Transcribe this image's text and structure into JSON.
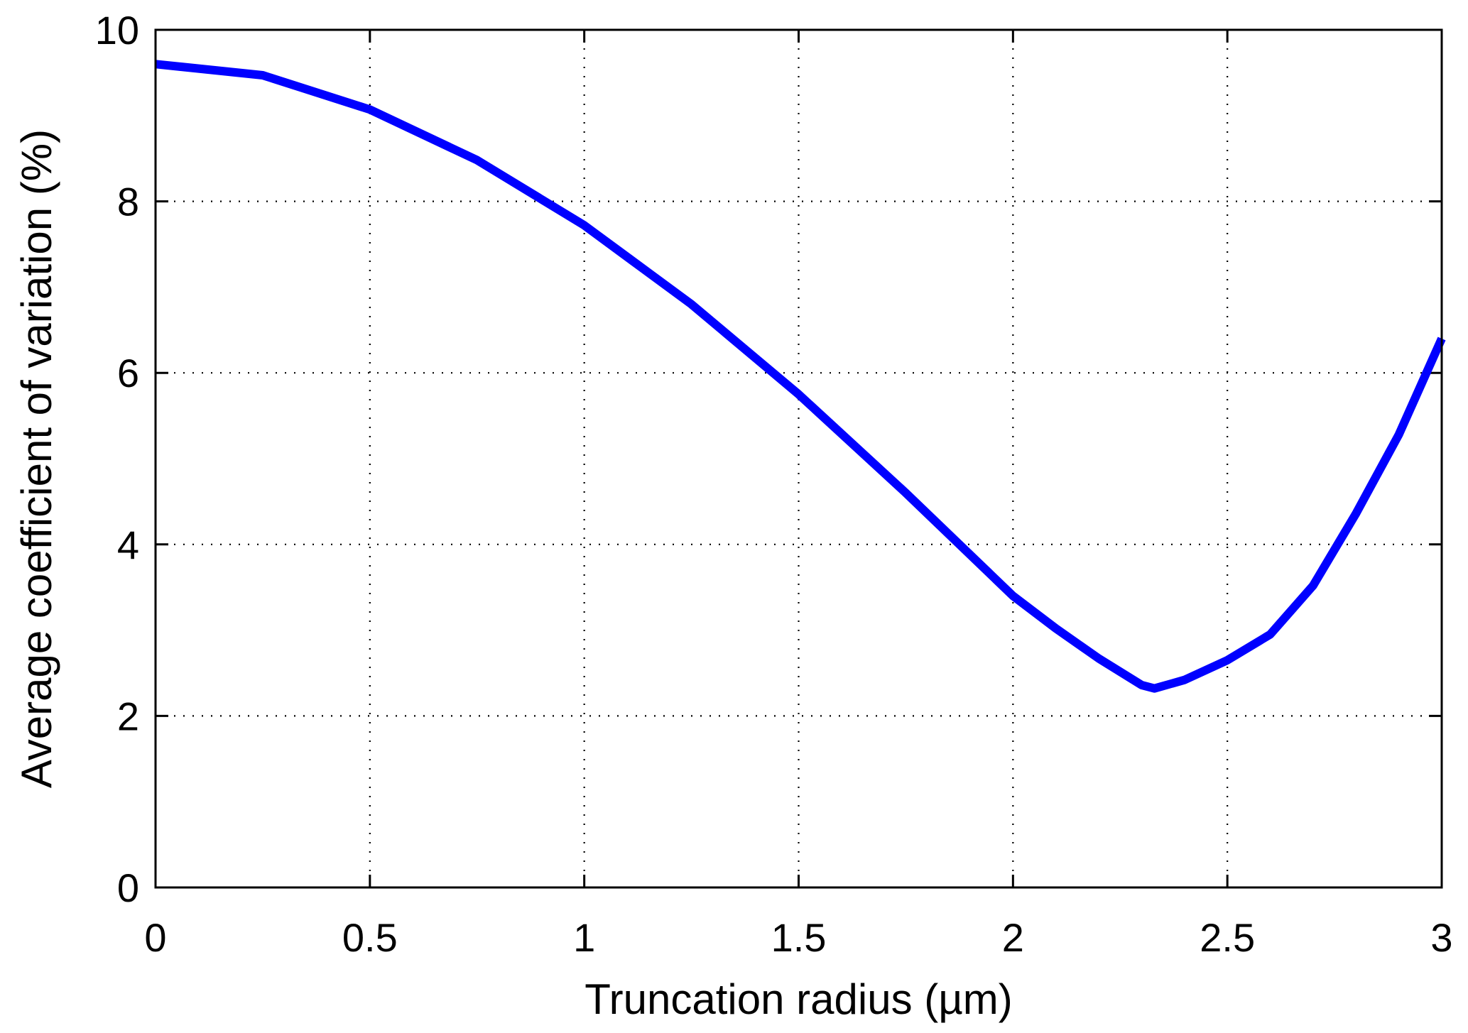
{
  "chart_data": {
    "type": "line",
    "title": "",
    "xlabel": "Truncation radius (µm)",
    "ylabel": "Average coefficient of variation (%)",
    "xlim": [
      0,
      3
    ],
    "ylim": [
      0,
      10
    ],
    "xticks": [
      0,
      0.5,
      1,
      1.5,
      2,
      2.5,
      3
    ],
    "xtick_labels": [
      "0",
      "0.5",
      "1",
      "1.5",
      "2",
      "2.5",
      "3"
    ],
    "yticks": [
      0,
      2,
      4,
      6,
      8,
      10
    ],
    "ytick_labels": [
      "0",
      "2",
      "4",
      "6",
      "8",
      "10"
    ],
    "grid": true,
    "series": [
      {
        "color": "#0000ff",
        "x": [
          0,
          0.25,
          0.5,
          0.75,
          1,
          1.25,
          1.5,
          1.75,
          2,
          2.1,
          2.2,
          2.3,
          2.33,
          2.4,
          2.5,
          2.6,
          2.7,
          2.8,
          2.9,
          3
        ],
        "y": [
          9.6,
          9.47,
          9.07,
          8.48,
          7.72,
          6.8,
          5.75,
          4.6,
          3.4,
          3.02,
          2.67,
          2.36,
          2.32,
          2.42,
          2.65,
          2.95,
          3.52,
          4.36,
          5.28,
          6.4
        ]
      }
    ]
  }
}
